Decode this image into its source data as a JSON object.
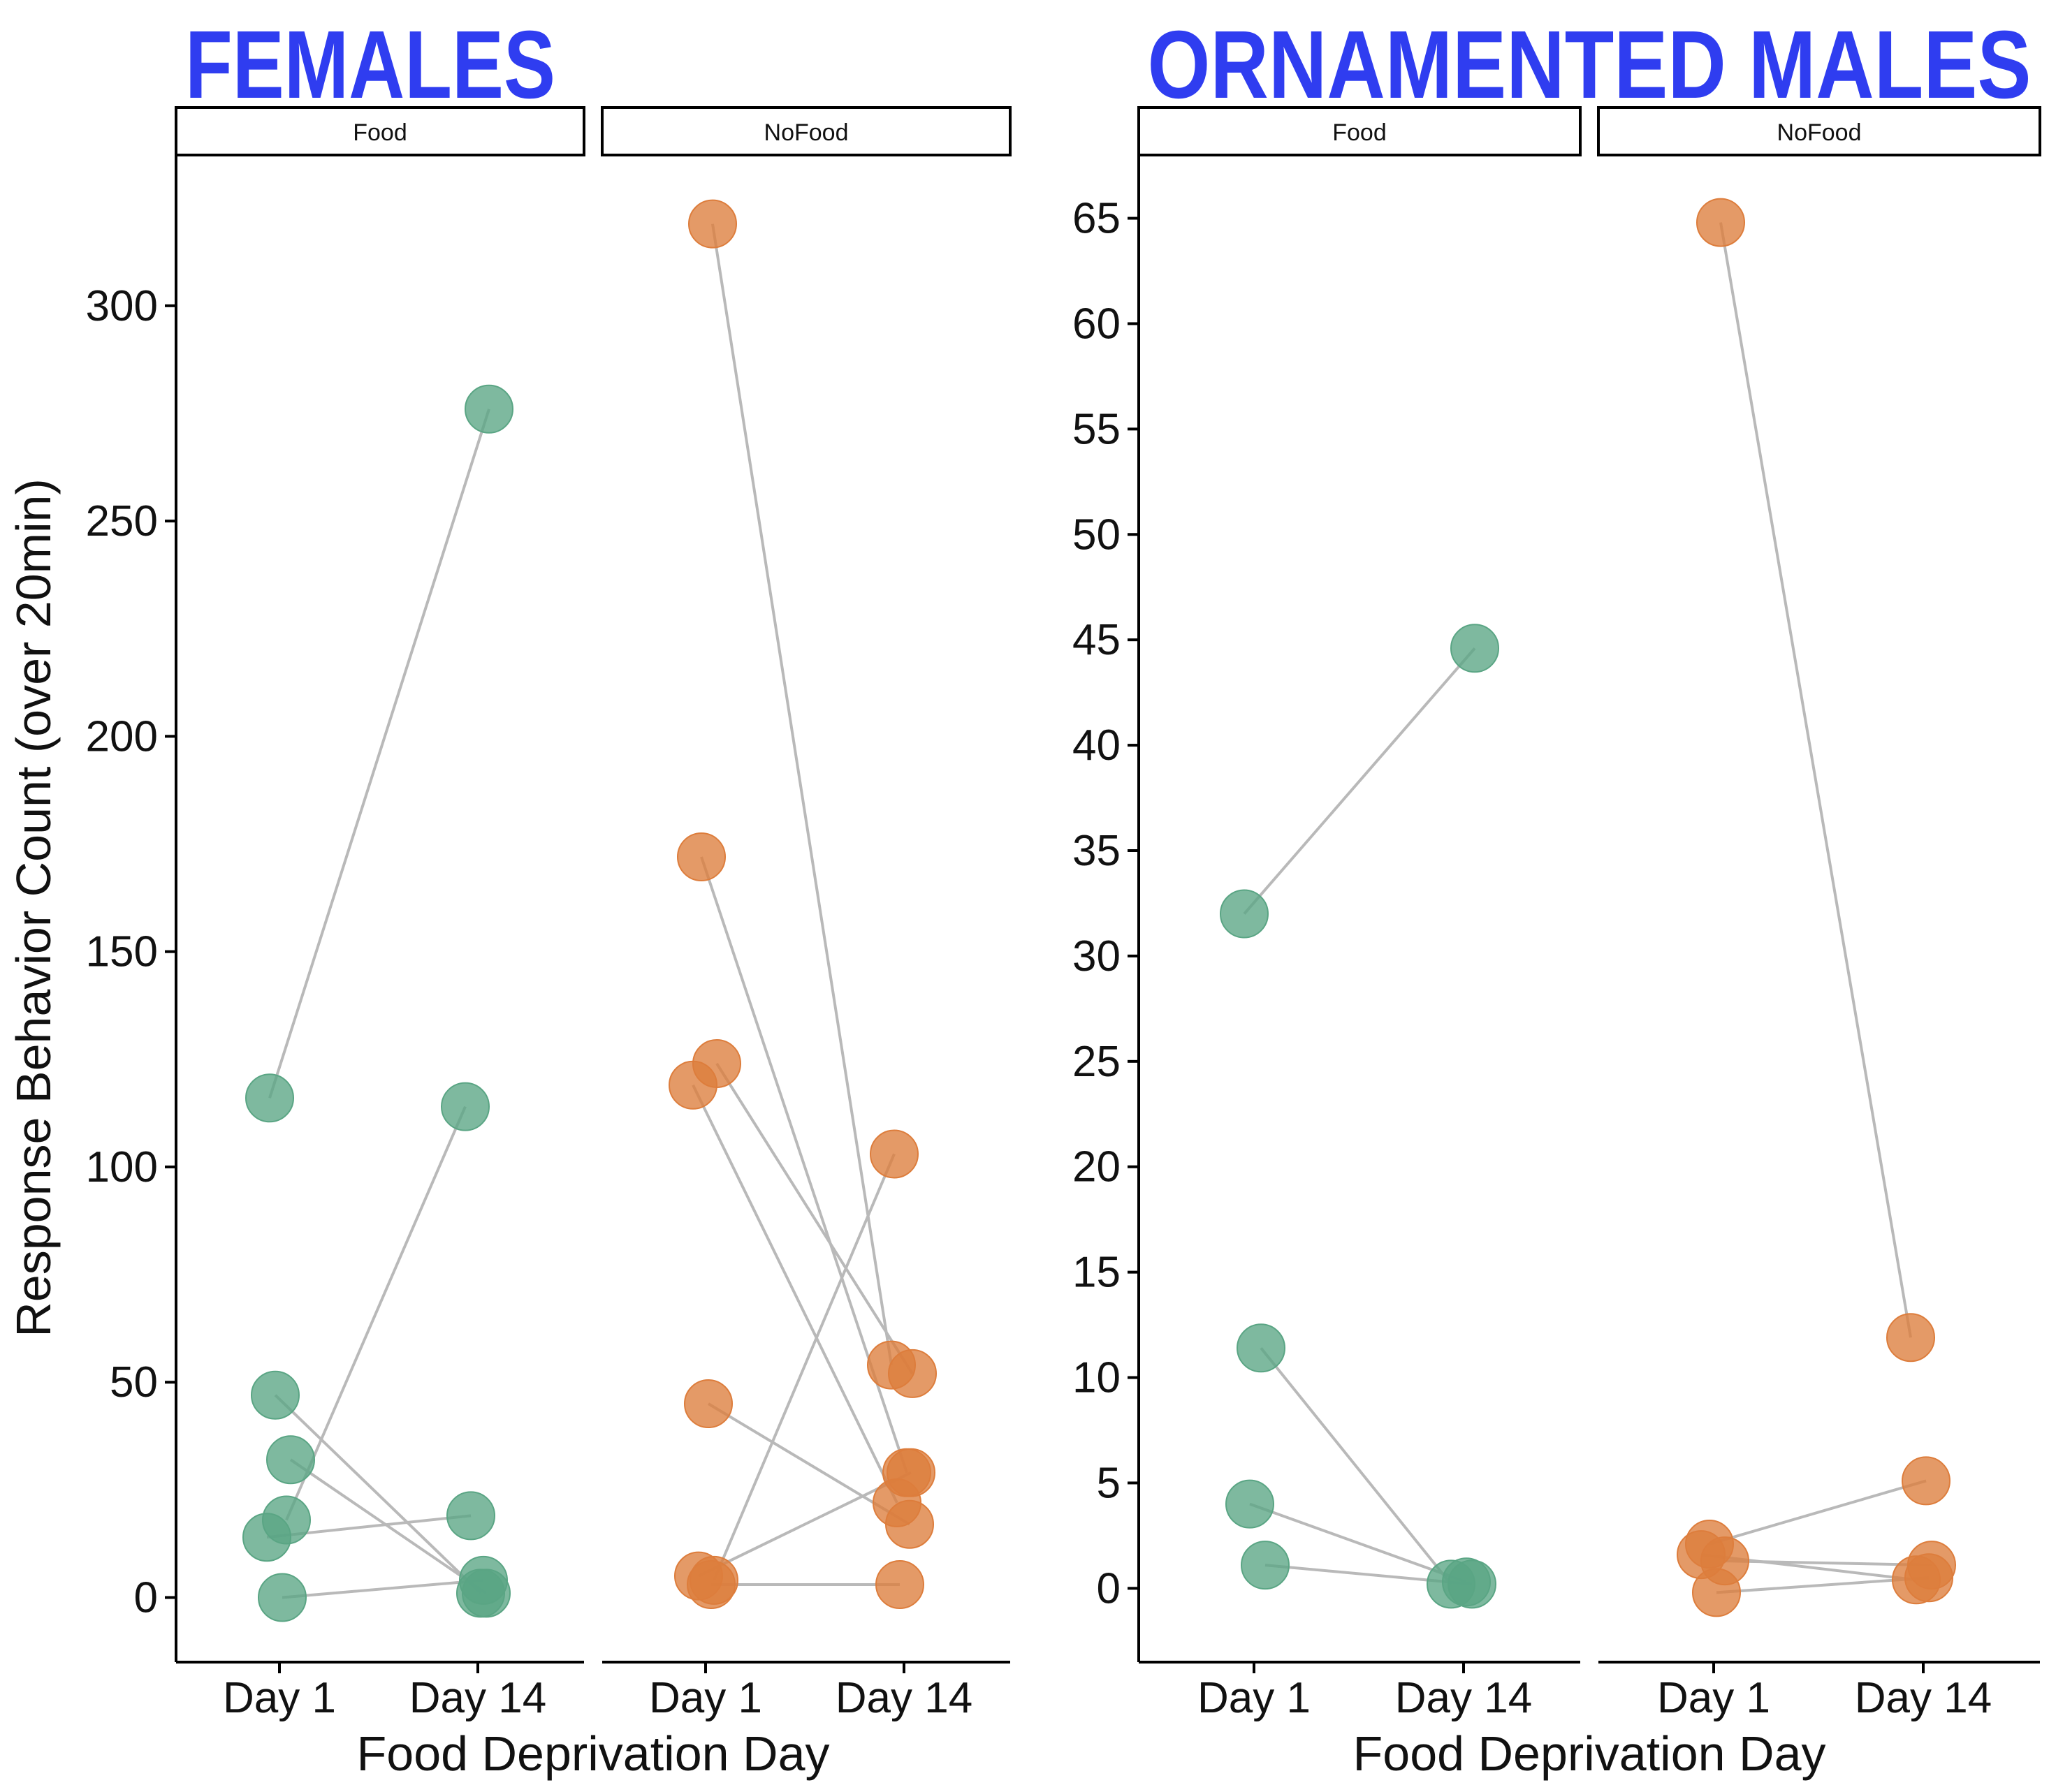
{
  "colors": {
    "title": "#2f3df0",
    "food": "#5aa584",
    "nofood": "#dd7d3c",
    "line": "#b9b9b9"
  },
  "figure": {
    "ylabel": "Response Behavior Count (over 20min)",
    "xlabel": "Food Deprivation Day"
  },
  "chart_data": [
    {
      "type": "scatter",
      "title": "FEMALES",
      "xlabel": "Food Deprivation Day",
      "ylabel": "Response Behavior Count (over 20min)",
      "ylim": [
        -15,
        335
      ],
      "yticks": [
        0,
        50,
        100,
        150,
        200,
        250,
        300
      ],
      "categories": [
        "Day 1",
        "Day 14"
      ],
      "grid": false,
      "facets": [
        {
          "label": "Food",
          "color_key": "food",
          "pairs": [
            [
              116,
              276
            ],
            [
              18,
              114
            ],
            [
              47,
              1
            ],
            [
              32,
              1
            ],
            [
              14,
              19
            ],
            [
              0,
              4
            ]
          ]
        },
        {
          "label": "NoFood",
          "color_key": "nofood",
          "pairs": [
            [
              319,
              54
            ],
            [
              172,
              29
            ],
            [
              124,
              52
            ],
            [
              119,
              22
            ],
            [
              45,
              17
            ],
            [
              4,
              103
            ],
            [
              5,
              29
            ],
            [
              3,
              3
            ]
          ]
        }
      ]
    },
    {
      "type": "scatter",
      "title": "ORNAMENTED MALES",
      "xlabel": "Food Deprivation Day",
      "ylim": [
        -3.5,
        68
      ],
      "yticks": [
        0,
        5,
        10,
        15,
        20,
        25,
        30,
        35,
        40,
        45,
        50,
        55,
        60,
        65
      ],
      "categories": [
        "Day 1",
        "Day 14"
      ],
      "grid": false,
      "facets": [
        {
          "label": "Food",
          "color_key": "food",
          "pairs": [
            [
              32,
              44.6
            ],
            [
              11.4,
              0.2
            ],
            [
              4,
              0.3
            ],
            [
              1.1,
              0.2
            ]
          ]
        },
        {
          "label": "NoFood",
          "color_key": "nofood",
          "pairs": [
            [
              64.8,
              11.9
            ],
            [
              2.1,
              5.1
            ],
            [
              1.3,
              1.1
            ],
            [
              1.6,
              0.4
            ],
            [
              -0.2,
              0.5
            ]
          ]
        }
      ]
    }
  ]
}
